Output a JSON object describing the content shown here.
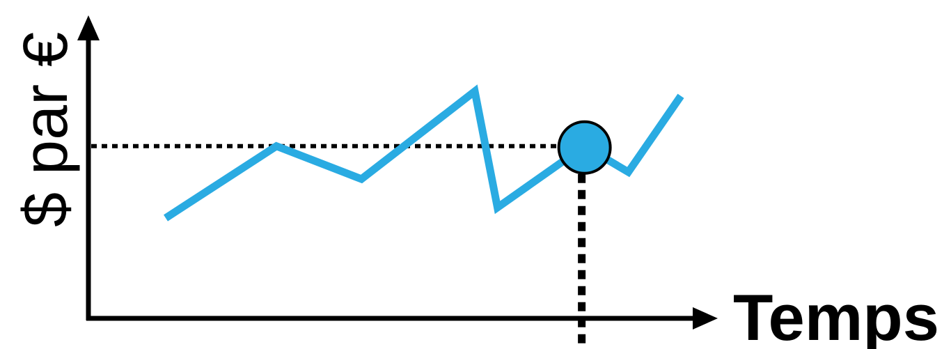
{
  "chart_data": {
    "type": "line",
    "xlabel": "Temps",
    "ylabel": "$ par €",
    "series": [
      {
        "points": [
          [
            0.0,
            0.43
          ],
          [
            0.215,
            0.738
          ],
          [
            0.38,
            0.597
          ],
          [
            0.6,
            0.973
          ],
          [
            0.644,
            0.475
          ],
          [
            0.813,
            0.738
          ],
          [
            0.898,
            0.627
          ],
          [
            1.0,
            0.953
          ]
        ]
      }
    ],
    "highlight_point": [
      0.813,
      0.738
    ],
    "reference_lines": [
      "horizontal-dotted",
      "vertical-dotted"
    ],
    "grid": false,
    "colors": {
      "line": "#2aabe2",
      "marker_fill": "#2aabe2",
      "marker_stroke": "#000000",
      "axis": "#000000",
      "guide": "#000000"
    }
  }
}
